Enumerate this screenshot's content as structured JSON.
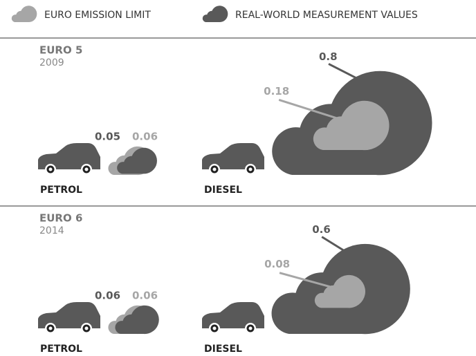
{
  "chart_data": {
    "type": "cloud",
    "series": [
      {
        "name": "EURO EMISSION LIMIT",
        "color": "#a6a6a6",
        "values": [
          0.06,
          0.18,
          0.06,
          0.08
        ]
      },
      {
        "name": "REAL-WORLD MEASUREMENT VALUES",
        "color": "#595959",
        "values": [
          0.05,
          0.8,
          0.06,
          0.6
        ]
      }
    ],
    "categories": [
      "PETROL",
      "DIESEL",
      "PETROL",
      "DIESEL"
    ],
    "groups": [
      {
        "title": "EURO 5",
        "subtitle": "2009"
      },
      {
        "title": "EURO 6",
        "subtitle": "2014"
      }
    ]
  }
}
